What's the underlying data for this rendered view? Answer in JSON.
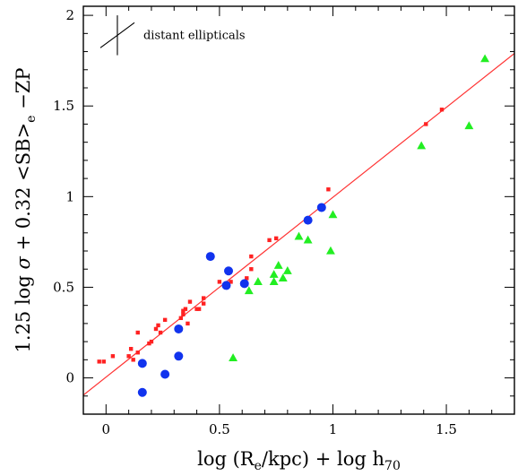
{
  "chart_data": {
    "type": "scatter",
    "xlabel": "log (R_e/kpc) + log h_70",
    "ylabel": "1.25 log σ + 0.32 <SB>_e − ZP",
    "xlim": [
      -0.1,
      1.8
    ],
    "ylim": [
      -0.2,
      2.05
    ],
    "x_ticks": [
      "0",
      "0.5",
      "1",
      "1.5"
    ],
    "x_tick_values": [
      0,
      0.5,
      1,
      1.5
    ],
    "y_ticks": [
      "0",
      "0.5",
      "1",
      "1.5",
      "2"
    ],
    "y_tick_values": [
      0,
      0.5,
      1,
      1.5,
      2
    ],
    "grid": false,
    "legend": {
      "label": "distant ellipticals",
      "position": "top-left",
      "error_bar_dx": 0.04,
      "error_bar_dy": 0.11
    },
    "fit_line": {
      "color": "#ff3333",
      "x": [
        -0.1,
        1.8
      ],
      "y": [
        -0.095,
        1.79
      ]
    },
    "series": [
      {
        "marker": "square",
        "color": "#ff2222",
        "points": [
          [
            -0.03,
            0.09
          ],
          [
            -0.01,
            0.09
          ],
          [
            0.03,
            0.12
          ],
          [
            0.1,
            0.12
          ],
          [
            0.11,
            0.16
          ],
          [
            0.12,
            0.1
          ],
          [
            0.14,
            0.14
          ],
          [
            0.14,
            0.25
          ],
          [
            0.19,
            0.19
          ],
          [
            0.2,
            0.2
          ],
          [
            0.22,
            0.27
          ],
          [
            0.23,
            0.29
          ],
          [
            0.24,
            0.25
          ],
          [
            0.26,
            0.32
          ],
          [
            0.33,
            0.33
          ],
          [
            0.34,
            0.37
          ],
          [
            0.34,
            0.35
          ],
          [
            0.35,
            0.38
          ],
          [
            0.36,
            0.3
          ],
          [
            0.37,
            0.42
          ],
          [
            0.4,
            0.38
          ],
          [
            0.41,
            0.38
          ],
          [
            0.43,
            0.44
          ],
          [
            0.43,
            0.41
          ],
          [
            0.5,
            0.53
          ],
          [
            0.55,
            0.53
          ],
          [
            0.62,
            0.55
          ],
          [
            0.64,
            0.6
          ],
          [
            0.64,
            0.67
          ],
          [
            0.72,
            0.76
          ],
          [
            0.75,
            0.77
          ],
          [
            0.98,
            1.04
          ],
          [
            1.41,
            1.4
          ],
          [
            1.48,
            1.48
          ]
        ]
      },
      {
        "marker": "circle",
        "color": "#1133ee",
        "points": [
          [
            0.16,
            -0.08
          ],
          [
            0.16,
            0.08
          ],
          [
            0.26,
            0.02
          ],
          [
            0.32,
            0.12
          ],
          [
            0.32,
            0.27
          ],
          [
            0.46,
            0.67
          ],
          [
            0.53,
            0.51
          ],
          [
            0.54,
            0.59
          ],
          [
            0.61,
            0.52
          ],
          [
            0.89,
            0.87
          ],
          [
            0.95,
            0.94
          ]
        ]
      },
      {
        "marker": "triangle",
        "color": "#22ee22",
        "points": [
          [
            0.56,
            0.11
          ],
          [
            0.63,
            0.48
          ],
          [
            0.67,
            0.53
          ],
          [
            0.74,
            0.53
          ],
          [
            0.74,
            0.57
          ],
          [
            0.76,
            0.62
          ],
          [
            0.78,
            0.55
          ],
          [
            0.8,
            0.59
          ],
          [
            0.85,
            0.78
          ],
          [
            0.89,
            0.76
          ],
          [
            0.99,
            0.7
          ],
          [
            1.0,
            0.9
          ],
          [
            1.39,
            1.28
          ],
          [
            1.6,
            1.39
          ],
          [
            1.67,
            1.76
          ]
        ]
      }
    ]
  }
}
